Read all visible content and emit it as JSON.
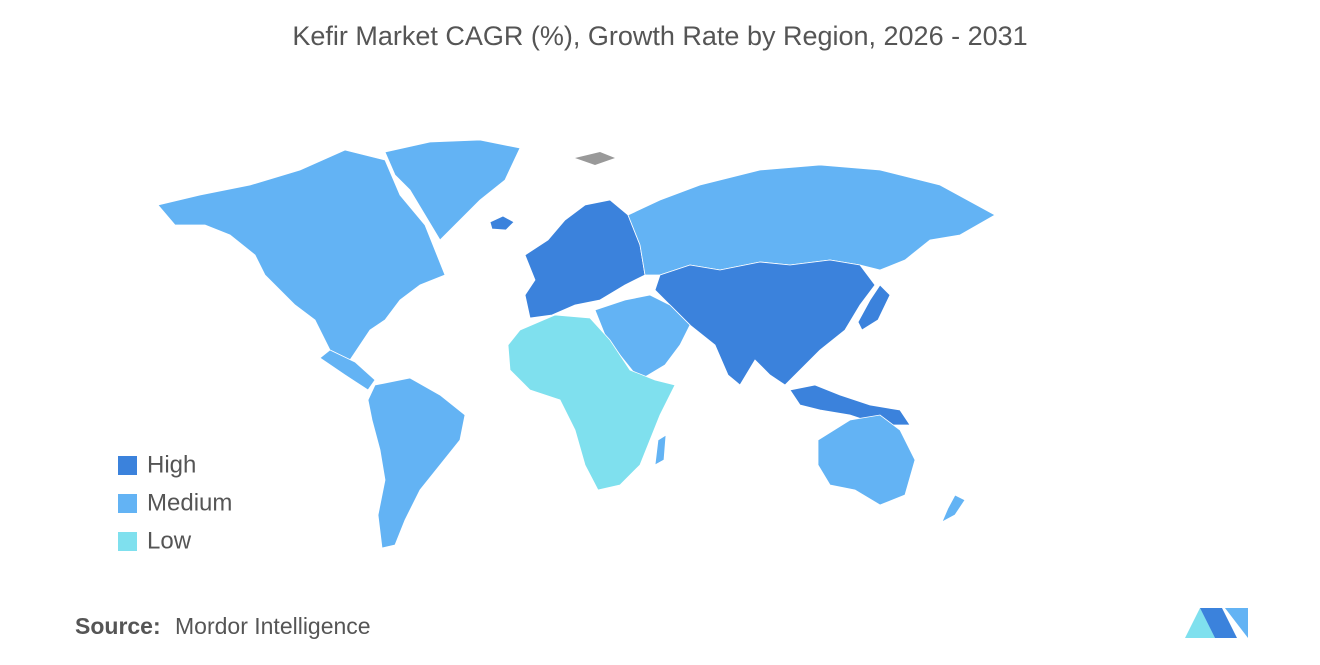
{
  "title": "Kefir Market CAGR (%), Growth Rate by Region, 2026 - 2031",
  "legend": [
    {
      "name": "High",
      "color": "#3b82dc"
    },
    {
      "name": "Medium",
      "color": "#63b3f4"
    },
    {
      "name": "Low",
      "color": "#7fe0ee"
    }
  ],
  "source": {
    "label": "Source:",
    "value": "Mordor Intelligence"
  }
}
